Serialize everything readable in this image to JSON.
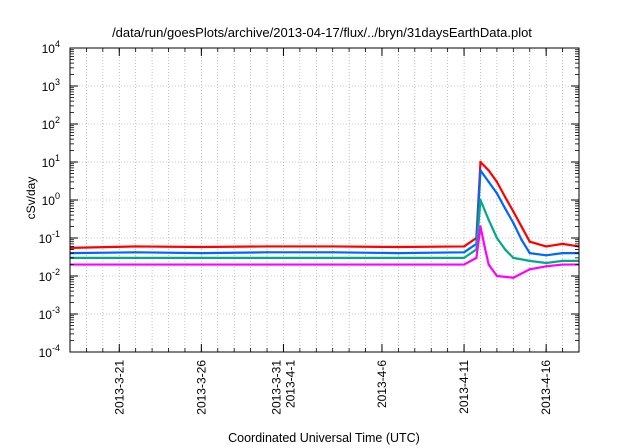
{
  "chart_data": {
    "type": "line",
    "title": "/data/run/goesPlots/archive/2013-04-17/flux/../bryn/31daysEarthData.plot",
    "xlabel": "Coordinated Universal Time (UTC)",
    "ylabel": "cSv/day",
    "y_scale": "log",
    "ylim": [
      0.0001,
      10000
    ],
    "xlim": [
      "2013-03-18",
      "2013-04-18"
    ],
    "grid": true,
    "y_ticks": [
      {
        "base": "10",
        "exp": "-4"
      },
      {
        "base": "10",
        "exp": "-3"
      },
      {
        "base": "10",
        "exp": "-2"
      },
      {
        "base": "10",
        "exp": "-1"
      },
      {
        "base": "10",
        "exp": "0"
      },
      {
        "base": "10",
        "exp": "1"
      },
      {
        "base": "10",
        "exp": "2"
      },
      {
        "base": "10",
        "exp": "3"
      },
      {
        "base": "10",
        "exp": "4"
      }
    ],
    "x_ticks": [
      {
        "date": "2013-03-21",
        "lines": [
          "2013-3-21"
        ]
      },
      {
        "date": "2013-03-26",
        "lines": [
          "2013-3-26"
        ]
      },
      {
        "date": "2013-03-31",
        "lines": [
          "2013-3-31",
          "2013-4-1"
        ]
      },
      {
        "date": "2013-04-06",
        "lines": [
          "2013-4-6"
        ]
      },
      {
        "date": "2013-04-11",
        "lines": [
          "2013-4-11"
        ]
      },
      {
        "date": "2013-04-16",
        "lines": [
          "2013-4-16"
        ]
      }
    ],
    "series": [
      {
        "color": "#ff0000",
        "x": [
          "2013-03-18",
          "2013-03-22",
          "2013-03-26",
          "2013-03-30",
          "2013-04-03",
          "2013-04-07",
          "2013-04-11",
          "2013-04-11T18:00",
          "2013-04-12",
          "2013-04-12T12:00",
          "2013-04-13",
          "2013-04-13T12:00",
          "2013-04-14",
          "2013-04-14T12:00",
          "2013-04-15",
          "2013-04-16",
          "2013-04-17",
          "2013-04-18"
        ],
        "y": [
          0.055,
          0.06,
          0.058,
          0.06,
          0.06,
          0.058,
          0.06,
          0.1,
          10,
          6,
          3,
          1.2,
          0.5,
          0.2,
          0.08,
          0.06,
          0.07,
          0.06
        ]
      },
      {
        "color": "#0066ff",
        "x": [
          "2013-03-18",
          "2013-03-22",
          "2013-03-26",
          "2013-03-30",
          "2013-04-03",
          "2013-04-07",
          "2013-04-11",
          "2013-04-11T18:00",
          "2013-04-12",
          "2013-04-12T12:00",
          "2013-04-13",
          "2013-04-13T12:00",
          "2013-04-14",
          "2013-04-14T12:00",
          "2013-04-15",
          "2013-04-16",
          "2013-04-17",
          "2013-04-18"
        ],
        "y": [
          0.04,
          0.042,
          0.04,
          0.042,
          0.042,
          0.04,
          0.042,
          0.07,
          6,
          3,
          1.5,
          0.6,
          0.25,
          0.09,
          0.04,
          0.035,
          0.04,
          0.04
        ]
      },
      {
        "color": "#00aa88",
        "x": [
          "2013-03-18",
          "2013-03-22",
          "2013-03-26",
          "2013-03-30",
          "2013-04-03",
          "2013-04-07",
          "2013-04-11",
          "2013-04-11T18:00",
          "2013-04-12",
          "2013-04-12T12:00",
          "2013-04-13",
          "2013-04-13T12:00",
          "2013-04-14",
          "2013-04-15",
          "2013-04-16",
          "2013-04-17",
          "2013-04-18"
        ],
        "y": [
          0.03,
          0.03,
          0.03,
          0.03,
          0.03,
          0.03,
          0.03,
          0.05,
          1.0,
          0.3,
          0.1,
          0.05,
          0.03,
          0.025,
          0.022,
          0.025,
          0.025
        ]
      },
      {
        "color": "#ff00ff",
        "x": [
          "2013-03-18",
          "2013-03-22",
          "2013-03-26",
          "2013-03-30",
          "2013-04-03",
          "2013-04-07",
          "2013-04-11",
          "2013-04-11T18:00",
          "2013-04-12",
          "2013-04-12T06:00",
          "2013-04-12T12:00",
          "2013-04-13",
          "2013-04-14",
          "2013-04-15",
          "2013-04-16",
          "2013-04-17",
          "2013-04-18"
        ],
        "y": [
          0.02,
          0.02,
          0.02,
          0.02,
          0.02,
          0.02,
          0.02,
          0.03,
          0.2,
          0.06,
          0.02,
          0.01,
          0.009,
          0.015,
          0.018,
          0.02,
          0.02
        ]
      }
    ]
  }
}
